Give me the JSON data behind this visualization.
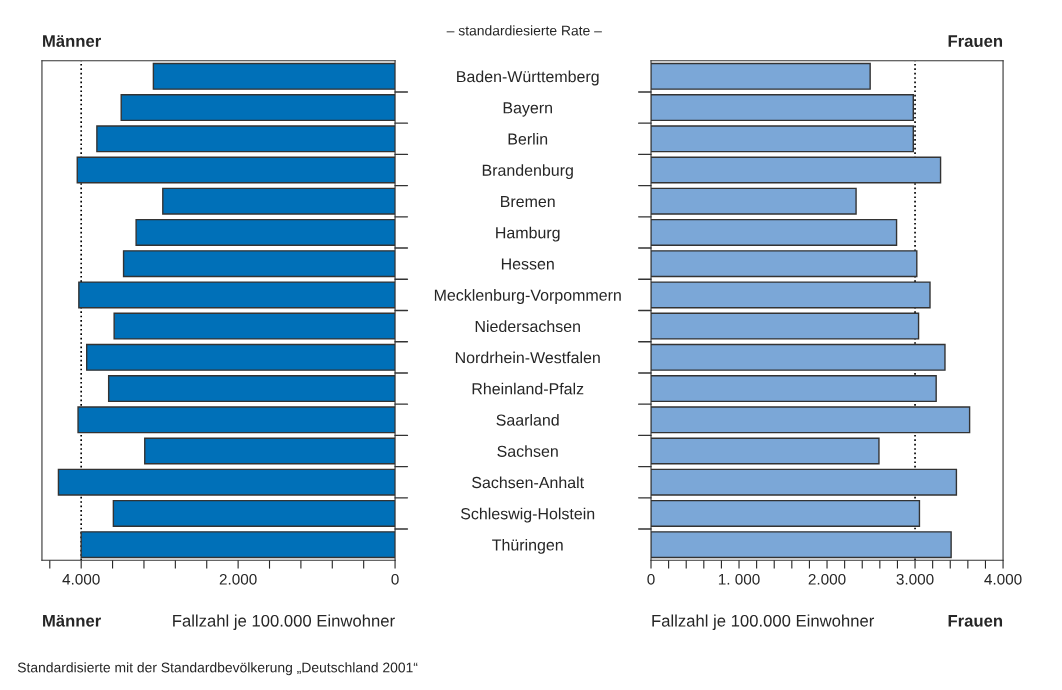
{
  "chart_data": [
    {
      "type": "bar",
      "orientation": "horizontal",
      "title": "Männer",
      "xlabel": "Fallzahl je 100.000 Einwohner",
      "categories": [
        "Baden-Württemberg",
        "Bayern",
        "Berlin",
        "Brandenburg",
        "Bremen",
        "Hamburg",
        "Hessen",
        "Mecklenburg-Vorpommern",
        "Niedersachsen",
        "Nordrhein-Westfalen",
        "Rheinland-Pfalz",
        "Saarland",
        "Sachsen",
        "Sachsen-Anhalt",
        "Schleswig-Holstein",
        "Thüringen"
      ],
      "series": [
        {
          "color": "#0070b8",
          "values": [
            3080,
            3490,
            3800,
            4050,
            2960,
            3300,
            3460,
            4030,
            3580,
            3930,
            3650,
            4040,
            3190,
            4290,
            3590,
            4000
          ]
        }
      ],
      "xlim": [
        4500,
        0
      ],
      "xticks": [
        {
          "value": 4400,
          "label": null
        },
        {
          "value": 4000,
          "label": "4.000"
        },
        {
          "value": 3600,
          "label": null
        },
        {
          "value": 3200,
          "label": null
        },
        {
          "value": 2800,
          "label": null
        },
        {
          "value": 2400,
          "label": null
        },
        {
          "value": 2000,
          "label": "2.000"
        },
        {
          "value": 1600,
          "label": null
        },
        {
          "value": 1200,
          "label": null
        },
        {
          "value": 800,
          "label": null
        },
        {
          "value": 400,
          "label": null
        },
        0
      ],
      "ref_lines": [
        {
          "axis": "x",
          "value": 4000,
          "line_style": "dotted",
          "color": "#000000"
        }
      ],
      "annotations": [
        "Männer",
        "Standardisierte mit der Standardbevölkerung „Deutschland 2001“"
      ]
    },
    {
      "type": "bar",
      "orientation": "horizontal",
      "title": "Frauen",
      "xlabel": "Fallzahl je 100.000 Einwohner",
      "tick_labels": "x",
      "categories": [
        null,
        null,
        null,
        null,
        null,
        null,
        null,
        null,
        null,
        null,
        null,
        null,
        null,
        null,
        null,
        null
      ],
      "series": [
        {
          "color": "#7ba7d7",
          "values": [
            2490,
            2980,
            2980,
            3290,
            2330,
            2790,
            3020,
            3170,
            3040,
            3340,
            3240,
            3620,
            2590,
            3470,
            3050,
            3410
          ]
        }
      ],
      "xlim": [
        0,
        4000
      ],
      "xticks": [
        0,
        {
          "value": 200,
          "label": null
        },
        {
          "value": 400,
          "label": null
        },
        {
          "value": 600,
          "label": null
        },
        {
          "value": 800,
          "label": null
        },
        {
          "value": 1000,
          "label": "1. 000"
        },
        {
          "value": 1200,
          "label": null
        },
        {
          "value": 1400,
          "label": null
        },
        {
          "value": 1600,
          "label": null
        },
        {
          "value": 1800,
          "label": null
        },
        {
          "value": 2000,
          "label": "2.000"
        },
        {
          "value": 2200,
          "label": null
        },
        {
          "value": 2400,
          "label": null
        },
        {
          "value": 2600,
          "label": null
        },
        {
          "value": 2800,
          "label": null
        },
        {
          "value": 3000,
          "label": "3.000"
        },
        {
          "value": 3200,
          "label": null
        },
        {
          "value": 3400,
          "label": null
        },
        {
          "value": 3600,
          "label": null
        },
        {
          "value": 3800,
          "label": null
        },
        {
          "value": 4000,
          "label": "4.000"
        }
      ],
      "ref_lines": [
        {
          "axis": "x",
          "value": 3000,
          "line_style": "dotted",
          "color": "#000000"
        }
      ],
      "annotations": [
        "Frauen",
        "– standardiesierte Rate –"
      ]
    }
  ]
}
